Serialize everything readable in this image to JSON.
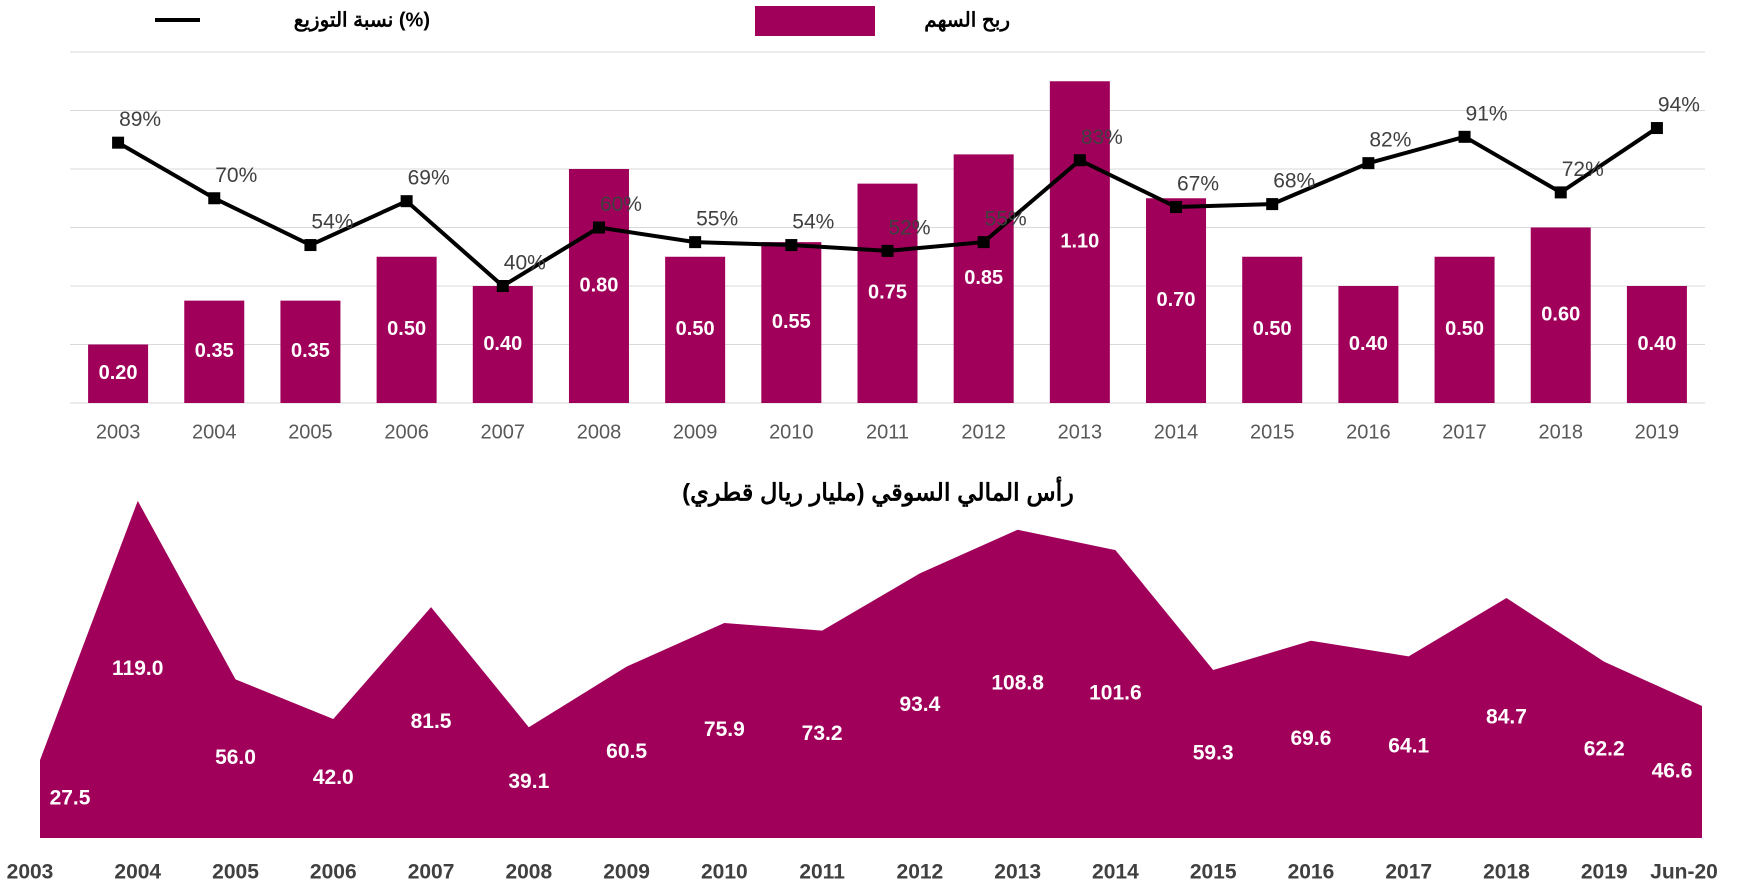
{
  "chart_data": [
    {
      "type": "bar_line",
      "categories": [
        "2003",
        "2004",
        "2005",
        "2006",
        "2007",
        "2008",
        "2009",
        "2010",
        "2011",
        "2012",
        "2013",
        "2014",
        "2015",
        "2016",
        "2017",
        "2018",
        "2019"
      ],
      "series": [
        {
          "name": "ربح السهم",
          "color": "#a0005a",
          "type": "bar",
          "values": [
            0.2,
            0.35,
            0.35,
            0.5,
            0.4,
            0.8,
            0.5,
            0.55,
            0.75,
            0.85,
            1.1,
            0.7,
            0.5,
            0.4,
            0.5,
            0.6,
            0.4
          ],
          "value_labels": [
            "0.20",
            "0.35",
            "0.35",
            "0.50",
            "0.40",
            "0.80",
            "0.50",
            "0.55",
            "0.75",
            "0.85",
            "1.10",
            "0.70",
            "0.50",
            "0.40",
            "0.50",
            "0.60",
            "0.40"
          ]
        },
        {
          "name": "نسبة التوزيع (%)",
          "color": "#000000",
          "type": "line",
          "axis": "y2",
          "values": [
            89,
            70,
            54,
            69,
            40,
            60,
            55,
            54,
            52,
            55,
            83,
            67,
            68,
            82,
            91,
            72,
            94
          ],
          "value_labels": [
            "89%",
            "70%",
            "54%",
            "69%",
            "40%",
            "60%",
            "55%",
            "54%",
            "52%",
            "55%",
            "83%",
            "67%",
            "68%",
            "82%",
            "91%",
            "72%",
            "94%"
          ]
        }
      ],
      "ylim": [
        0,
        1.2
      ],
      "yticks": [
        0,
        0.2,
        0.4,
        0.6,
        0.8,
        1.0,
        1.2
      ],
      "grid": true,
      "y2lim": [
        0,
        120
      ]
    },
    {
      "type": "area",
      "title": "رأس المالي السوقي (مليار ريال قطري)",
      "categories": [
        "2003",
        "2004",
        "2005",
        "2006",
        "2007",
        "2008",
        "2009",
        "2010",
        "2011",
        "2012",
        "2013",
        "2014",
        "2015",
        "2016",
        "2017",
        "2018",
        "2019",
        "Jun-20"
      ],
      "values": [
        27.5,
        119,
        56,
        42,
        81.5,
        39.1,
        60.5,
        75.9,
        73.2,
        93.4,
        108.8,
        101.6,
        59.3,
        69.6,
        64.1,
        84.7,
        62.2,
        46.6
      ],
      "value_labels": [
        "27.5",
        "119.0",
        "56.0",
        "42.0",
        "81.5",
        "39.1",
        "60.5",
        "75.9",
        "73.2",
        "93.4",
        "108.8",
        "101.6",
        "59.3",
        "69.6",
        "64.1",
        "84.7",
        "62.2",
        "46.6"
      ],
      "color": "#a0005a",
      "ylim": [
        0,
        120
      ]
    }
  ]
}
